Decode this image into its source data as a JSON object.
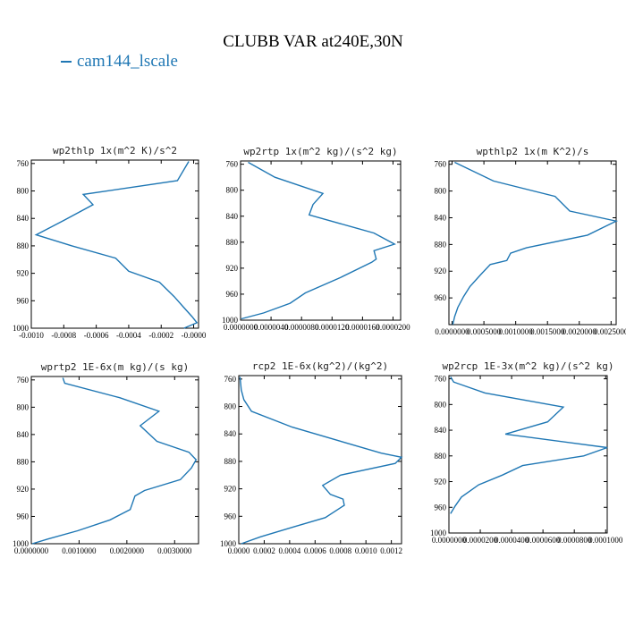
{
  "title": "CLUBB VAR at240E,30N",
  "legend": {
    "label": "cam144_lscale",
    "color": "#1f77b4"
  },
  "chart_data": [
    {
      "type": "line",
      "title": "wp2thlp  1x(m^2 K)/s^2",
      "series": [
        {
          "name": "cam144_lscale",
          "x": [
            -3e-05,
            -0.0001,
            -0.00068,
            -0.00062,
            -0.0008,
            -0.00097,
            -0.00075,
            -0.00048,
            -0.0004,
            -0.00021,
            -0.00012,
            -6e-05,
            -1e-05,
            2e-05,
            -6e-05
          ],
          "y": [
            757,
            785,
            805,
            820,
            843,
            864,
            880,
            898,
            917,
            933,
            954,
            970,
            983,
            992,
            1000
          ]
        }
      ],
      "xlim": [
        -0.001,
        3e-05
      ],
      "ylim": [
        1000,
        755
      ],
      "xtick_values": [
        -0.001,
        -0.0008,
        -0.0006,
        -0.0004,
        -0.0002,
        0.0
      ],
      "xtick_labels": [
        "-0.0010",
        "-0.0008",
        "-0.0006",
        "-0.0004",
        "-0.0002",
        "-0.0000"
      ],
      "ytick_values": [
        760,
        800,
        840,
        880,
        920,
        960,
        1000
      ],
      "ytick_labels": [
        "760",
        "800",
        "840",
        "880",
        "920",
        "960",
        "1000"
      ]
    },
    {
      "type": "line",
      "title": "wp2rtp  1x(m^2 kg)/(s^2 kg)",
      "series": [
        {
          "name": "cam144_lscale",
          "x": [
            1e-06,
            4.5e-06,
            1.08e-05,
            9.5e-06,
            9e-06,
            1.75e-05,
            2.02e-05,
            1.75e-05,
            1.78e-05,
            1.72e-05,
            1.3e-05,
            8.5e-06,
            6.5e-06,
            3e-06,
            1e-07
          ],
          "y": [
            757,
            780,
            805,
            822,
            838,
            866,
            883,
            893,
            906,
            911,
            935,
            958,
            974,
            989,
            998
          ]
        }
      ],
      "xlim": [
        0,
        2.1e-05
      ],
      "ylim": [
        1000,
        755
      ],
      "xtick_values": [
        0.0,
        4e-06,
        8e-06,
        1.2e-05,
        1.6e-05,
        2e-05
      ],
      "xtick_labels": [
        "0.0000000",
        "0.0000040",
        "0.0000080",
        "0.0000120",
        "0.0000160",
        "0.0000200"
      ],
      "ytick_values": [
        760,
        800,
        840,
        880,
        920,
        960,
        1000
      ],
      "ytick_labels": [
        "760",
        "800",
        "840",
        "880",
        "920",
        "960",
        "1000"
      ]
    },
    {
      "type": "line",
      "title": "wpthlp2  1x(m K^2)/s",
      "series": [
        {
          "name": "cam144_lscale",
          "x": [
            4e-05,
            0.00065,
            0.00162,
            0.00185,
            0.00258,
            0.00213,
            0.00117,
            0.00092,
            0.00086,
            0.0006,
            0.00045,
            0.00028,
            0.00018,
            9e-05,
            4e-05,
            1e-05
          ],
          "y": [
            757,
            785,
            808,
            830,
            845,
            866,
            885,
            893,
            904,
            910,
            925,
            943,
            958,
            974,
            988,
            1000
          ]
        }
      ],
      "xlim": [
        -5e-05,
        0.00258
      ],
      "ylim": [
        1000,
        755
      ],
      "xtick_values": [
        0.0,
        0.0005,
        0.001,
        0.0015,
        0.002,
        0.0025
      ],
      "xtick_labels": [
        "0.0000000",
        "0.0005000",
        "0.0010000",
        "0.0015000",
        "0.0020000",
        "0.0025000"
      ],
      "ytick_values": [
        760,
        800,
        840,
        880,
        920,
        960
      ],
      "ytick_labels": [
        "760",
        "800",
        "840",
        "880",
        "920",
        "960"
      ]
    },
    {
      "type": "line",
      "title": "wprtp2  1E-6x(m kg)/(s kg)",
      "series": [
        {
          "name": "cam144_lscale",
          "x": [
            0.00066,
            0.0007,
            0.00185,
            0.00267,
            0.00228,
            0.00263,
            0.0033,
            0.00345,
            0.00335,
            0.00312,
            0.00237,
            0.00217,
            0.00207,
            0.00165,
            0.00097,
            0.00035,
            2e-05
          ],
          "y": [
            757,
            765,
            786,
            806,
            827,
            850,
            866,
            877,
            889,
            906,
            922,
            930,
            950,
            965,
            981,
            993,
            1000
          ]
        }
      ],
      "xlim": [
        0,
        0.0035
      ],
      "ylim": [
        1000,
        755
      ],
      "xtick_values": [
        0.0,
        0.001,
        0.002,
        0.003
      ],
      "xtick_labels": [
        "0.0000000",
        "0.0010000",
        "0.0020000",
        "0.0030000"
      ],
      "ytick_values": [
        760,
        800,
        840,
        880,
        920,
        960,
        1000
      ],
      "ytick_labels": [
        "760",
        "800",
        "840",
        "880",
        "920",
        "960",
        "1000"
      ]
    },
    {
      "type": "line",
      "title": "rcp2  1E-6x(kg^2)/(kg^2)",
      "series": [
        {
          "name": "cam144_lscale",
          "x": [
            1e-05,
            2e-05,
            4e-05,
            0.0001,
            0.00042,
            0.00112,
            0.00128,
            0.00123,
            0.0008,
            0.00066,
            0.00072,
            0.00082,
            0.00083,
            0.00068,
            0.00044,
            0.00017,
            2e-05
          ],
          "y": [
            757,
            776,
            790,
            807,
            830,
            868,
            874,
            883,
            900,
            915,
            928,
            935,
            944,
            962,
            975,
            990,
            1000
          ]
        }
      ],
      "xlim": [
        0,
        0.00128
      ],
      "ylim": [
        1000,
        755
      ],
      "xtick_values": [
        0.0,
        0.0002,
        0.0004,
        0.0006,
        0.0008,
        0.001,
        0.0012
      ],
      "xtick_labels": [
        "0.0000",
        "0.0002",
        "0.0004",
        "0.0006",
        "0.0008",
        "0.0010",
        "0.0012"
      ],
      "ytick_values": [
        760,
        800,
        840,
        880,
        920,
        960,
        1000
      ],
      "ytick_labels": [
        "760",
        "800",
        "840",
        "880",
        "920",
        "960",
        "1000"
      ]
    },
    {
      "type": "line",
      "title": "wp2rcp  1E-3x(m^2 kg)/(s^2 kg)",
      "series": [
        {
          "name": "cam144_lscale",
          "x": [
            1e-06,
            3e-06,
            2.3e-05,
            7.3e-05,
            6.3e-05,
            3.6e-05,
            0.000101,
            8.6e-05,
            4.7e-05,
            3.4e-05,
            1.9e-05,
            8e-06,
            4e-06,
            1e-06
          ],
          "y": [
            757,
            765,
            782,
            804,
            827,
            846,
            867,
            880,
            895,
            910,
            925,
            944,
            958,
            970
          ]
        }
      ],
      "xlim": [
        0,
        0.000101
      ],
      "ylim": [
        1000,
        755
      ],
      "xtick_values": [
        0.0,
        2e-05,
        4e-05,
        6e-05,
        8e-05,
        0.0001
      ],
      "xtick_labels": [
        "0.0000000",
        "0.0000200",
        "0.0000400",
        "0.0000600",
        "0.0000800",
        "0.0001000"
      ],
      "ytick_values": [
        760,
        800,
        840,
        880,
        920,
        960,
        1000
      ],
      "ytick_labels": [
        "760",
        "800",
        "840",
        "880",
        "920",
        "960",
        "1000"
      ]
    }
  ]
}
